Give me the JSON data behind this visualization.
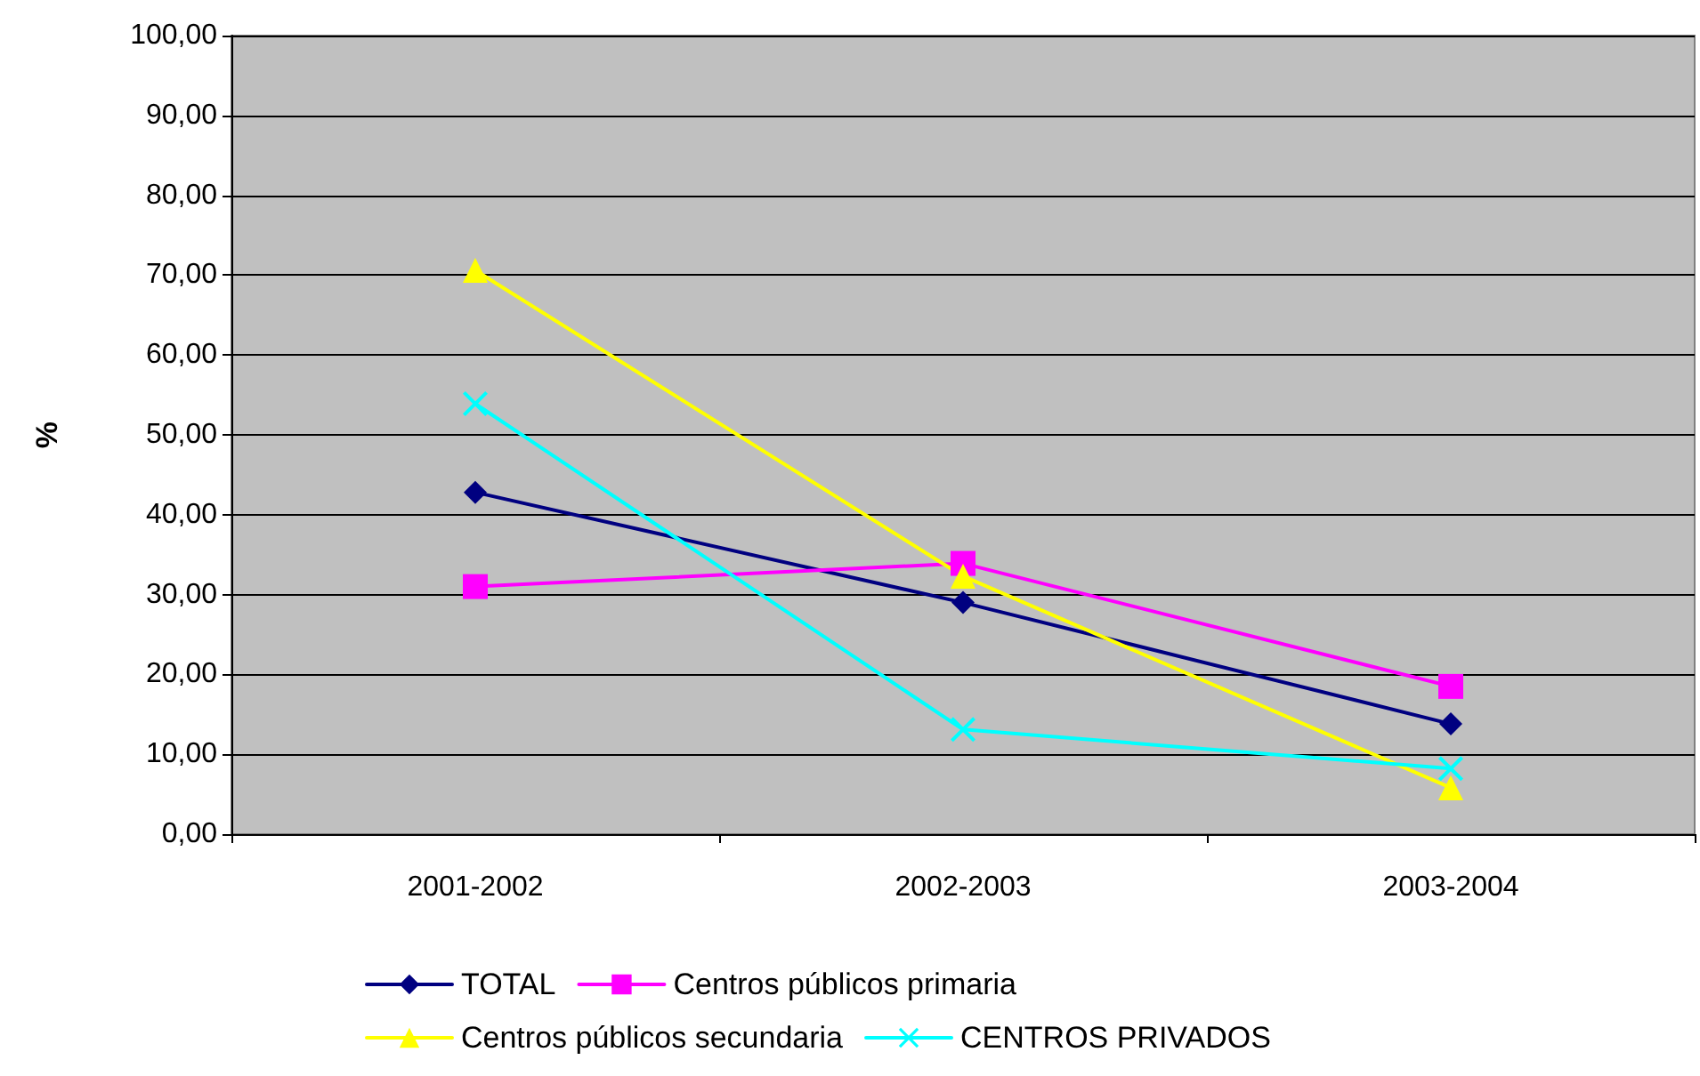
{
  "chart_data": {
    "type": "line",
    "ylabel": "%",
    "categories": [
      "2001-2002",
      "2002-2003",
      "2003-2004"
    ],
    "series": [
      {
        "name": "TOTAL",
        "color": "#000080",
        "marker": "diamond",
        "values": [
          42.8,
          29.0,
          13.8
        ]
      },
      {
        "name": "Centros públicos primaria",
        "color": "#ff00ff",
        "marker": "square",
        "values": [
          31.0,
          33.9,
          18.5
        ]
      },
      {
        "name": "Centros públicos secundaria",
        "color": "#ffff00",
        "marker": "triangle",
        "values": [
          70.6,
          32.3,
          5.8
        ]
      },
      {
        "name": "CENTROS PRIVADOS",
        "color": "#00ffff",
        "marker": "cross",
        "values": [
          53.9,
          13.1,
          8.2
        ]
      }
    ],
    "ylim": [
      0,
      100
    ],
    "yticks": [
      {
        "value": 0,
        "label": "0,00"
      },
      {
        "value": 10,
        "label": "10,00"
      },
      {
        "value": 20,
        "label": "20,00"
      },
      {
        "value": 30,
        "label": "30,00"
      },
      {
        "value": 40,
        "label": "40,00"
      },
      {
        "value": 50,
        "label": "50,00"
      },
      {
        "value": 60,
        "label": "60,00"
      },
      {
        "value": 70,
        "label": "70,00"
      },
      {
        "value": 80,
        "label": "80,00"
      },
      {
        "value": 90,
        "label": "90,00"
      },
      {
        "value": 100,
        "label": "100,00"
      }
    ],
    "grid": "y",
    "legend": "bottom",
    "line_style": "solid"
  }
}
